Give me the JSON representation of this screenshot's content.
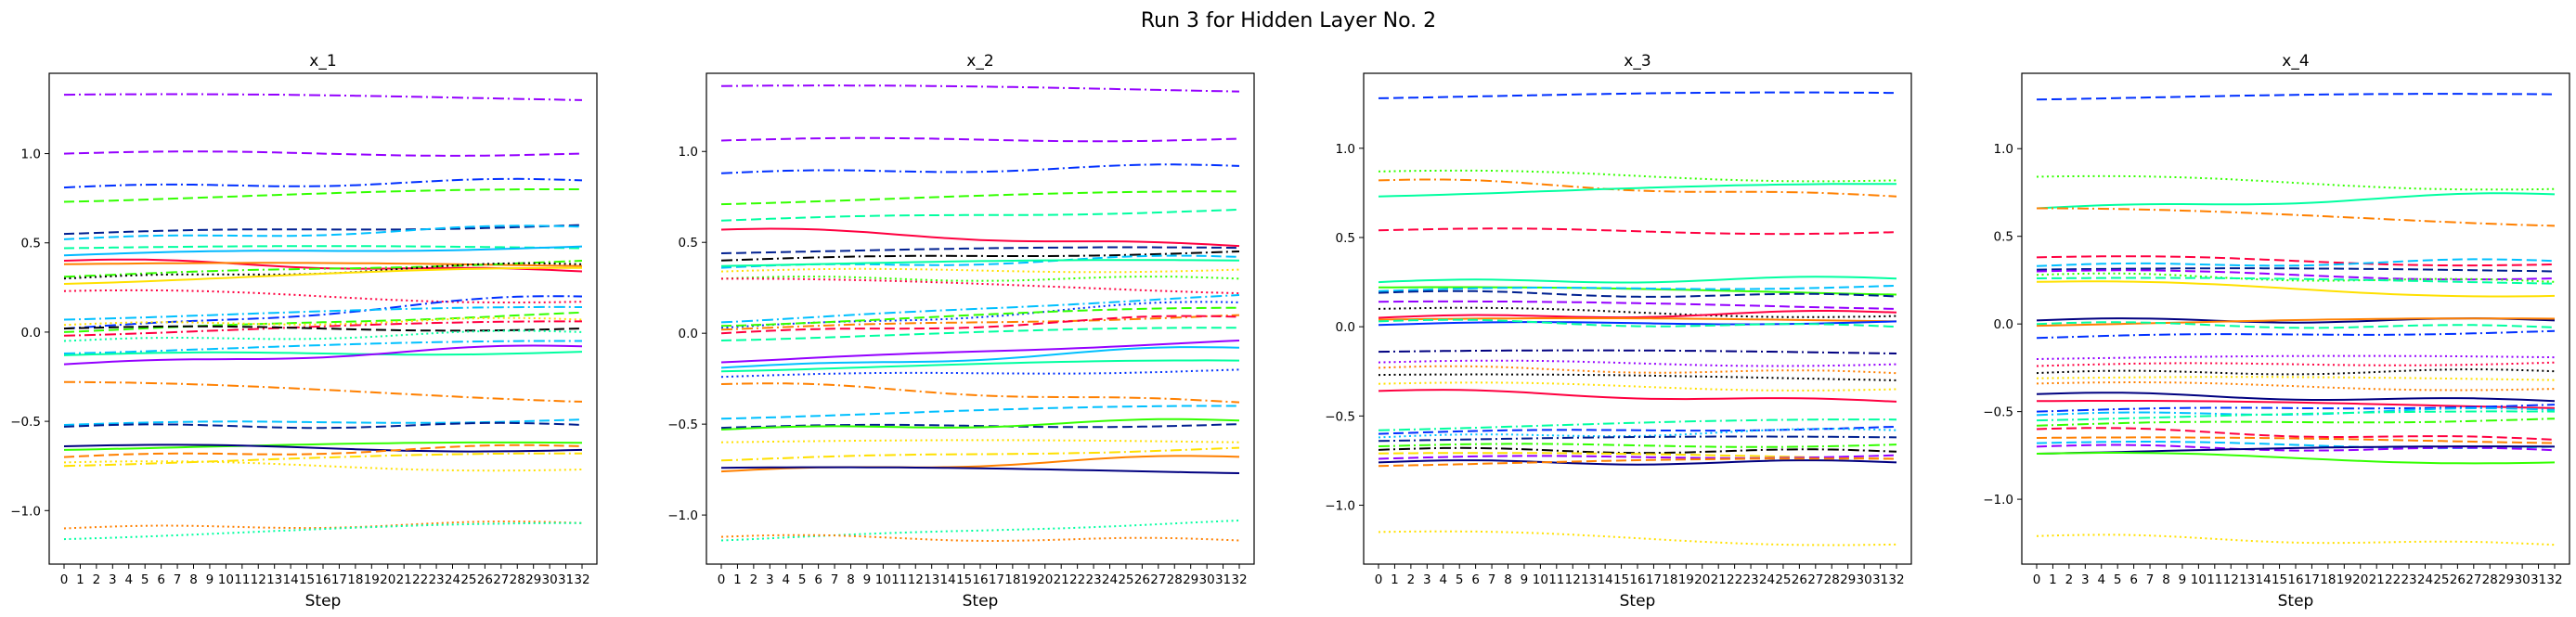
{
  "figure": {
    "suptitle": "Run 3 for Hidden Layer No. 2"
  },
  "chart_data": [
    {
      "type": "line",
      "title": "x_1",
      "xlabel": "Step",
      "ylabel": "",
      "xlim": [
        0,
        32
      ],
      "ylim": [
        -1.3,
        1.45
      ],
      "yticks": [
        -1.0,
        -0.5,
        0.0,
        0.5,
        1.0
      ],
      "series": [
        {
          "color": "#9400ff",
          "dash": "dashdot",
          "start": 1.33,
          "end": 1.3
        },
        {
          "color": "#9400ff",
          "dash": "dashed",
          "start": 1.0,
          "end": 1.0
        },
        {
          "color": "#0030ff",
          "dash": "dashdot",
          "start": 0.81,
          "end": 0.85
        },
        {
          "color": "#33ff00",
          "dash": "dashed",
          "start": 0.73,
          "end": 0.8
        },
        {
          "color": "#002090",
          "dash": "dashed",
          "start": 0.55,
          "end": 0.6
        },
        {
          "color": "#00c0ff",
          "dash": "dashed",
          "start": 0.52,
          "end": 0.59
        },
        {
          "color": "#00ffa0",
          "dash": "dashed",
          "start": 0.47,
          "end": 0.47
        },
        {
          "color": "#00b8ff",
          "dash": "solid",
          "start": 0.43,
          "end": 0.48
        },
        {
          "color": "#ff0040",
          "dash": "solid",
          "start": 0.4,
          "end": 0.34
        },
        {
          "color": "#ff8000",
          "dash": "solid",
          "start": 0.38,
          "end": 0.37
        },
        {
          "color": "#33ff00",
          "dash": "dashdot",
          "start": 0.31,
          "end": 0.4
        },
        {
          "color": "#000000",
          "dash": "dotted",
          "start": 0.3,
          "end": 0.38
        },
        {
          "color": "#ffe000",
          "dash": "solid",
          "start": 0.27,
          "end": 0.36
        },
        {
          "color": "#ff0040",
          "dash": "dotted",
          "start": 0.23,
          "end": 0.17
        },
        {
          "color": "#0030ff",
          "dash": "dashdot",
          "start": 0.02,
          "end": 0.2
        },
        {
          "color": "#00c0ff",
          "dash": "dashdot",
          "start": 0.07,
          "end": 0.14
        },
        {
          "color": "#33ff00",
          "dash": "dashed",
          "start": 0.0,
          "end": 0.11
        },
        {
          "color": "#ffe000",
          "dash": "dotted",
          "start": 0.04,
          "end": 0.07
        },
        {
          "color": "#ff0040",
          "dash": "dashdot",
          "start": -0.02,
          "end": 0.06
        },
        {
          "color": "#000000",
          "dash": "dashed",
          "start": 0.02,
          "end": 0.02
        },
        {
          "color": "#00ffa0",
          "dash": "dotted",
          "start": -0.05,
          "end": 0.0
        },
        {
          "color": "#00c0ff",
          "dash": "dashdot",
          "start": -0.12,
          "end": -0.05
        },
        {
          "color": "#00ffa0",
          "dash": "solid",
          "start": -0.13,
          "end": -0.11
        },
        {
          "color": "#9400ff",
          "dash": "solid",
          "start": -0.18,
          "end": -0.08
        },
        {
          "color": "#ff8000",
          "dash": "dashdot",
          "start": -0.28,
          "end": -0.39
        },
        {
          "color": "#00c0ff",
          "dash": "dashed",
          "start": -0.52,
          "end": -0.49
        },
        {
          "color": "#002090",
          "dash": "dashed",
          "start": -0.53,
          "end": -0.52
        },
        {
          "color": "#33ff00",
          "dash": "solid",
          "start": -0.66,
          "end": -0.62
        },
        {
          "color": "#000080",
          "dash": "solid",
          "start": -0.64,
          "end": -0.66
        },
        {
          "color": "#ff8000",
          "dash": "dashed",
          "start": -0.7,
          "end": -0.64
        },
        {
          "color": "#ffe000",
          "dash": "dashdot",
          "start": -0.75,
          "end": -0.68
        },
        {
          "color": "#ffe000",
          "dash": "dotted",
          "start": -0.73,
          "end": -0.77
        },
        {
          "color": "#ff8000",
          "dash": "dotted",
          "start": -1.1,
          "end": -1.07
        },
        {
          "color": "#00ffa0",
          "dash": "dotted",
          "start": -1.16,
          "end": -1.07
        }
      ]
    },
    {
      "type": "line",
      "title": "x_2",
      "xlabel": "Step",
      "ylabel": "",
      "xlim": [
        0,
        32
      ],
      "ylim": [
        -1.27,
        1.43
      ],
      "yticks": [
        -1.0,
        -0.5,
        0.0,
        0.5,
        1.0
      ],
      "series": [
        {
          "color": "#9400ff",
          "dash": "dashdot",
          "start": 1.36,
          "end": 1.33
        },
        {
          "color": "#9400ff",
          "dash": "dashed",
          "start": 1.06,
          "end": 1.07
        },
        {
          "color": "#0030ff",
          "dash": "dashdot",
          "start": 0.88,
          "end": 0.92
        },
        {
          "color": "#33ff00",
          "dash": "dashed",
          "start": 0.71,
          "end": 0.78
        },
        {
          "color": "#00ffa0",
          "dash": "dashed",
          "start": 0.62,
          "end": 0.68
        },
        {
          "color": "#ff0040",
          "dash": "solid",
          "start": 0.57,
          "end": 0.48
        },
        {
          "color": "#002090",
          "dash": "dashed",
          "start": 0.44,
          "end": 0.47
        },
        {
          "color": "#000000",
          "dash": "dashdot",
          "start": 0.4,
          "end": 0.45
        },
        {
          "color": "#00c0ff",
          "dash": "dashed",
          "start": 0.36,
          "end": 0.42
        },
        {
          "color": "#00ffa0",
          "dash": "solid",
          "start": 0.37,
          "end": 0.4
        },
        {
          "color": "#ffe000",
          "dash": "dotted",
          "start": 0.34,
          "end": 0.35
        },
        {
          "color": "#33ff00",
          "dash": "dotted",
          "start": 0.3,
          "end": 0.3
        },
        {
          "color": "#ff0040",
          "dash": "dotted",
          "start": 0.3,
          "end": 0.22
        },
        {
          "color": "#00c0ff",
          "dash": "dashdot",
          "start": 0.06,
          "end": 0.21
        },
        {
          "color": "#0030ff",
          "dash": "dotted",
          "start": 0.03,
          "end": 0.17
        },
        {
          "color": "#33ff00",
          "dash": "dashed",
          "start": 0.04,
          "end": 0.14
        },
        {
          "color": "#ff8000",
          "dash": "dashdot",
          "start": 0.02,
          "end": 0.1
        },
        {
          "color": "#ff0040",
          "dash": "dashed",
          "start": 0.0,
          "end": 0.09
        },
        {
          "color": "#00ffa0",
          "dash": "dashed",
          "start": -0.04,
          "end": 0.03
        },
        {
          "color": "#9400ff",
          "dash": "solid",
          "start": -0.16,
          "end": -0.04
        },
        {
          "color": "#00c0ff",
          "dash": "solid",
          "start": -0.19,
          "end": -0.08
        },
        {
          "color": "#00ffa0",
          "dash": "solid",
          "start": -0.21,
          "end": -0.15
        },
        {
          "color": "#0030ff",
          "dash": "dotted",
          "start": -0.24,
          "end": -0.2
        },
        {
          "color": "#ff8000",
          "dash": "dashdot",
          "start": -0.28,
          "end": -0.38
        },
        {
          "color": "#00c0ff",
          "dash": "dashed",
          "start": -0.47,
          "end": -0.4
        },
        {
          "color": "#002090",
          "dash": "dashed",
          "start": -0.52,
          "end": -0.5
        },
        {
          "color": "#33ff00",
          "dash": "solid",
          "start": -0.53,
          "end": -0.48
        },
        {
          "color": "#ffe000",
          "dash": "dotted",
          "start": -0.6,
          "end": -0.6
        },
        {
          "color": "#ffe000",
          "dash": "dashdot",
          "start": -0.7,
          "end": -0.63
        },
        {
          "color": "#ff8000",
          "dash": "solid",
          "start": -0.76,
          "end": -0.68
        },
        {
          "color": "#000080",
          "dash": "solid",
          "start": -0.74,
          "end": -0.77
        },
        {
          "color": "#00ffa0",
          "dash": "dotted",
          "start": -1.14,
          "end": -1.03
        },
        {
          "color": "#ff8000",
          "dash": "dotted",
          "start": -1.12,
          "end": -1.14
        }
      ]
    },
    {
      "type": "line",
      "title": "x_3",
      "xlabel": "Step",
      "ylabel": "",
      "xlim": [
        0,
        32
      ],
      "ylim": [
        -1.33,
        1.42
      ],
      "yticks": [
        -1.0,
        -0.5,
        0.0,
        0.5,
        1.0
      ],
      "series": [
        {
          "color": "#0030ff",
          "dash": "dashed",
          "start": 1.28,
          "end": 1.31
        },
        {
          "color": "#33ff00",
          "dash": "dotted",
          "start": 0.87,
          "end": 0.82
        },
        {
          "color": "#ff8000",
          "dash": "dashdot",
          "start": 0.82,
          "end": 0.73
        },
        {
          "color": "#00ffa0",
          "dash": "solid",
          "start": 0.73,
          "end": 0.8
        },
        {
          "color": "#ff0040",
          "dash": "dashed",
          "start": 0.54,
          "end": 0.53
        },
        {
          "color": "#00ffa0",
          "dash": "solid",
          "start": 0.25,
          "end": 0.27
        },
        {
          "color": "#33ff00",
          "dash": "solid",
          "start": 0.22,
          "end": 0.18
        },
        {
          "color": "#00c0ff",
          "dash": "dashed",
          "start": 0.2,
          "end": 0.23
        },
        {
          "color": "#002090",
          "dash": "dashed",
          "start": 0.19,
          "end": 0.17
        },
        {
          "color": "#9400ff",
          "dash": "dashed",
          "start": 0.14,
          "end": 0.1
        },
        {
          "color": "#000000",
          "dash": "dotted",
          "start": 0.1,
          "end": 0.06
        },
        {
          "color": "#ff0040",
          "dash": "solid",
          "start": 0.05,
          "end": 0.08
        },
        {
          "color": "#ff8000",
          "dash": "solid",
          "start": 0.04,
          "end": 0.03
        },
        {
          "color": "#0030ff",
          "dash": "solid",
          "start": 0.01,
          "end": 0.03
        },
        {
          "color": "#00ffa0",
          "dash": "dashed",
          "start": 0.03,
          "end": 0.0
        },
        {
          "color": "#000080",
          "dash": "dashdot",
          "start": -0.14,
          "end": -0.15
        },
        {
          "color": "#9400ff",
          "dash": "dotted",
          "start": -0.2,
          "end": -0.21
        },
        {
          "color": "#ff8000",
          "dash": "dotted",
          "start": -0.23,
          "end": -0.26
        },
        {
          "color": "#000000",
          "dash": "dotted",
          "start": -0.27,
          "end": -0.3
        },
        {
          "color": "#ffe000",
          "dash": "dotted",
          "start": -0.32,
          "end": -0.35
        },
        {
          "color": "#ff0040",
          "dash": "solid",
          "start": -0.36,
          "end": -0.42
        },
        {
          "color": "#00ffa0",
          "dash": "dashdot",
          "start": -0.58,
          "end": -0.52
        },
        {
          "color": "#0030ff",
          "dash": "dashed",
          "start": -0.6,
          "end": -0.56
        },
        {
          "color": "#00c0ff",
          "dash": "dotted",
          "start": -0.62,
          "end": -0.58
        },
        {
          "color": "#002090",
          "dash": "dashdot",
          "start": -0.64,
          "end": -0.62
        },
        {
          "color": "#33ff00",
          "dash": "dashdot",
          "start": -0.67,
          "end": -0.66
        },
        {
          "color": "#000000",
          "dash": "dashdot",
          "start": -0.69,
          "end": -0.7
        },
        {
          "color": "#ffe000",
          "dash": "dashed",
          "start": -0.71,
          "end": -0.74
        },
        {
          "color": "#9400ff",
          "dash": "dashed",
          "start": -0.74,
          "end": -0.72
        },
        {
          "color": "#000080",
          "dash": "solid",
          "start": -0.76,
          "end": -0.76
        },
        {
          "color": "#ff8000",
          "dash": "dashed",
          "start": -0.78,
          "end": -0.74
        },
        {
          "color": "#ffe000",
          "dash": "dotted",
          "start": -1.15,
          "end": -1.22
        }
      ]
    },
    {
      "type": "line",
      "title": "x_4",
      "xlabel": "Step",
      "ylabel": "",
      "xlim": [
        0,
        32
      ],
      "ylim": [
        -1.37,
        1.43
      ],
      "yticks": [
        -1.0,
        -0.5,
        0.0,
        0.5,
        1.0
      ],
      "series": [
        {
          "color": "#0030ff",
          "dash": "dashed",
          "start": 1.28,
          "end": 1.31
        },
        {
          "color": "#33ff00",
          "dash": "dotted",
          "start": 0.84,
          "end": 0.77
        },
        {
          "color": "#00ffa0",
          "dash": "solid",
          "start": 0.66,
          "end": 0.74
        },
        {
          "color": "#ff8000",
          "dash": "dashdot",
          "start": 0.66,
          "end": 0.56
        },
        {
          "color": "#ff0040",
          "dash": "dashed",
          "start": 0.38,
          "end": 0.34
        },
        {
          "color": "#00c0ff",
          "dash": "dashed",
          "start": 0.33,
          "end": 0.36
        },
        {
          "color": "#002090",
          "dash": "dashed",
          "start": 0.31,
          "end": 0.3
        },
        {
          "color": "#9400ff",
          "dash": "dashed",
          "start": 0.3,
          "end": 0.26
        },
        {
          "color": "#33ff00",
          "dash": "dotted",
          "start": 0.28,
          "end": 0.24
        },
        {
          "color": "#00ffa0",
          "dash": "dashed",
          "start": 0.26,
          "end": 0.23
        },
        {
          "color": "#ffe000",
          "dash": "solid",
          "start": 0.24,
          "end": 0.16
        },
        {
          "color": "#000080",
          "dash": "solid",
          "start": 0.02,
          "end": 0.02
        },
        {
          "color": "#ff8000",
          "dash": "solid",
          "start": -0.01,
          "end": 0.03
        },
        {
          "color": "#0030ff",
          "dash": "dashdot",
          "start": -0.08,
          "end": -0.04
        },
        {
          "color": "#00ffa0",
          "dash": "dashed",
          "start": 0.0,
          "end": -0.02
        },
        {
          "color": "#9400ff",
          "dash": "dotted",
          "start": -0.2,
          "end": -0.19
        },
        {
          "color": "#ff0040",
          "dash": "dotted",
          "start": -0.24,
          "end": -0.22
        },
        {
          "color": "#000000",
          "dash": "dotted",
          "start": -0.28,
          "end": -0.27
        },
        {
          "color": "#ffe000",
          "dash": "dotted",
          "start": -0.31,
          "end": -0.32
        },
        {
          "color": "#ff8000",
          "dash": "dotted",
          "start": -0.34,
          "end": -0.37
        },
        {
          "color": "#000080",
          "dash": "solid",
          "start": -0.4,
          "end": -0.44
        },
        {
          "color": "#ff0040",
          "dash": "solid",
          "start": -0.44,
          "end": -0.48
        },
        {
          "color": "#0030ff",
          "dash": "dashdot",
          "start": -0.5,
          "end": -0.46
        },
        {
          "color": "#00c0ff",
          "dash": "dashdot",
          "start": -0.52,
          "end": -0.49
        },
        {
          "color": "#00ffa0",
          "dash": "dashdot",
          "start": -0.55,
          "end": -0.5
        },
        {
          "color": "#33ff00",
          "dash": "dashdot",
          "start": -0.58,
          "end": -0.54
        },
        {
          "color": "#ff0040",
          "dash": "dashed",
          "start": -0.6,
          "end": -0.66
        },
        {
          "color": "#ff8000",
          "dash": "dashed",
          "start": -0.65,
          "end": -0.68
        },
        {
          "color": "#00c0ff",
          "dash": "dashed",
          "start": -0.68,
          "end": -0.7
        },
        {
          "color": "#9400ff",
          "dash": "dashed",
          "start": -0.7,
          "end": -0.72
        },
        {
          "color": "#000080",
          "dash": "solid",
          "start": -0.74,
          "end": -0.7
        },
        {
          "color": "#33ff00",
          "dash": "solid",
          "start": -0.74,
          "end": -0.79
        },
        {
          "color": "#ffe000",
          "dash": "dotted",
          "start": -1.21,
          "end": -1.26
        }
      ]
    }
  ]
}
